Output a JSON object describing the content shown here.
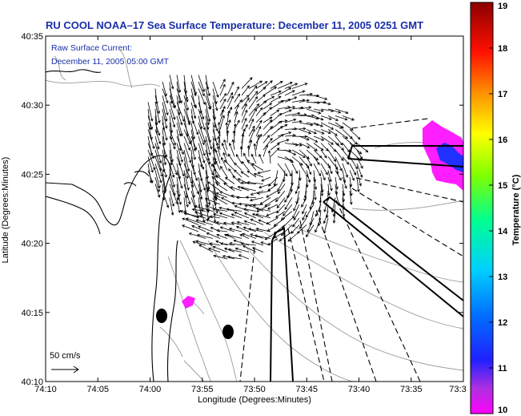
{
  "title": "RU COOL  NOAA–17  Sea Surface Temperature:  December 11, 2005 0251 GMT",
  "legend": {
    "line1": "Raw Surface Current:",
    "line2": "December 11, 2005 05:00 GMT",
    "scale_label": "50 cm/s"
  },
  "x_axis": {
    "label": "Longitude (Degrees:Minutes)",
    "ticks": [
      "74:10",
      "74:05",
      "74:00",
      "73:55",
      "73:50",
      "73:45",
      "73:40",
      "73:35",
      "73:3"
    ]
  },
  "y_axis": {
    "label": "Latitude (Degrees:Minutes)",
    "ticks": [
      "40:35",
      "40:30",
      "40:25",
      "40:20",
      "40:15",
      "40:10"
    ]
  },
  "colorbar": {
    "label": "Temperature (°C)",
    "ticks": [
      "19",
      "18",
      "17",
      "16",
      "15",
      "14",
      "13",
      "12",
      "11",
      "10"
    ],
    "min": 10,
    "max": 19,
    "colors": [
      "#ff00ff",
      "#8a2be2",
      "#0000ff",
      "#00c8ff",
      "#00ff80",
      "#a0ff00",
      "#ffff00",
      "#ff8000",
      "#ff0000",
      "#8b0000"
    ]
  },
  "map": {
    "land_color": "#ffffff",
    "coast_color": "#000000",
    "bathy_color": "#9a9a9a",
    "arrow_color": "#000000",
    "sst_patch_colors": [
      "#ff1eff",
      "#2030ff"
    ]
  }
}
